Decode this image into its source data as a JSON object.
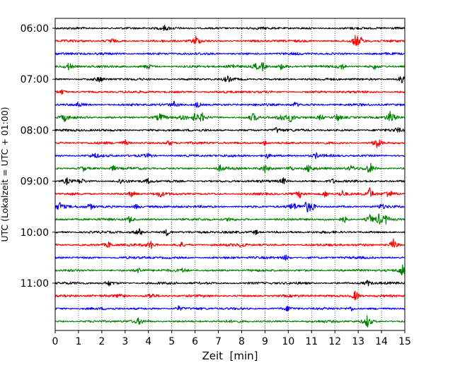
{
  "chart_data": {
    "type": "line",
    "title": "",
    "xlabel": "Zeit  [min]",
    "ylabel": "UTC (Lokalzeit = UTC + 01:00)",
    "xlim": [
      0,
      15
    ],
    "x_ticks": [
      "0",
      "1",
      "2",
      "3",
      "4",
      "5",
      "6",
      "7",
      "8",
      "9",
      "10",
      "11",
      "12",
      "13",
      "14",
      "15"
    ],
    "y_ticks": [
      "06:00",
      "07:00",
      "08:00",
      "09:00",
      "10:00",
      "11:00"
    ],
    "grid": "vertical dotted lines at each minute",
    "trace_colors": [
      "#000000",
      "#ff0000",
      "#0000ff",
      "#008000"
    ],
    "traces": [
      {
        "start": "06:00",
        "events": [
          [
            4.7,
            0.25
          ]
        ]
      },
      {
        "start": "06:15",
        "events": [
          [
            2.4,
            0.3
          ],
          [
            6.05,
            0.6
          ],
          [
            12.9,
            0.75
          ],
          [
            13.1,
            0.35
          ]
        ]
      },
      {
        "start": "06:30",
        "events": []
      },
      {
        "start": "06:45",
        "events": [
          [
            0.6,
            0.5
          ],
          [
            4.0,
            0.3
          ],
          [
            7.6,
            0.3
          ],
          [
            8.6,
            0.4
          ],
          [
            8.9,
            0.5
          ],
          [
            9.7,
            0.3
          ],
          [
            12.3,
            0.4
          ],
          [
            13.7,
            0.3
          ]
        ]
      },
      {
        "start": "07:00",
        "events": [
          [
            1.9,
            0.3
          ],
          [
            7.4,
            0.3
          ],
          [
            14.9,
            0.8
          ]
        ]
      },
      {
        "start": "07:15",
        "events": [
          [
            0.3,
            0.3
          ]
        ]
      },
      {
        "start": "07:30",
        "events": [
          [
            1.0,
            0.3
          ],
          [
            5.1,
            0.3
          ],
          [
            6.1,
            0.4
          ],
          [
            10.3,
            0.3
          ]
        ]
      },
      {
        "start": "07:45",
        "events": [
          [
            0.4,
            0.4
          ],
          [
            4.5,
            0.5
          ],
          [
            5.5,
            0.4
          ],
          [
            6.0,
            0.5
          ],
          [
            6.3,
            0.5
          ],
          [
            8.5,
            0.5
          ],
          [
            9.7,
            0.5
          ],
          [
            10.1,
            0.5
          ],
          [
            11.4,
            0.4
          ],
          [
            12.1,
            0.5
          ],
          [
            14.4,
            0.8
          ]
        ]
      },
      {
        "start": "08:00",
        "events": [
          [
            9.5,
            0.35
          ],
          [
            14.7,
            0.3
          ]
        ]
      },
      {
        "start": "08:15",
        "events": [
          [
            3.0,
            0.35
          ],
          [
            4.9,
            0.35
          ],
          [
            9.0,
            0.3
          ],
          [
            13.8,
            0.7
          ]
        ]
      },
      {
        "start": "08:30",
        "events": [
          [
            1.7,
            0.3
          ],
          [
            4.0,
            0.25
          ],
          [
            9.1,
            0.3
          ],
          [
            11.2,
            0.3
          ]
        ]
      },
      {
        "start": "08:45",
        "events": [
          [
            1.2,
            0.3
          ],
          [
            2.5,
            0.3
          ],
          [
            7.1,
            0.35
          ],
          [
            9.0,
            0.45
          ],
          [
            10.1,
            0.35
          ],
          [
            10.9,
            0.55
          ],
          [
            12.7,
            0.3
          ],
          [
            13.5,
            0.75
          ]
        ]
      },
      {
        "start": "09:00",
        "events": [
          [
            0.5,
            0.4
          ],
          [
            1.1,
            0.35
          ],
          [
            2.8,
            0.3
          ],
          [
            4.0,
            0.3
          ],
          [
            9.8,
            0.4
          ],
          [
            11.9,
            0.3
          ]
        ]
      },
      {
        "start": "09:15",
        "events": [
          [
            3.3,
            0.4
          ],
          [
            4.5,
            0.35
          ],
          [
            10.5,
            0.4
          ],
          [
            11.6,
            0.45
          ],
          [
            12.3,
            0.4
          ],
          [
            13.5,
            0.75
          ],
          [
            14.3,
            0.5
          ]
        ]
      },
      {
        "start": "09:30",
        "events": [
          [
            0.2,
            0.5
          ],
          [
            1.5,
            0.35
          ],
          [
            3.5,
            0.35
          ],
          [
            10.2,
            0.5
          ],
          [
            10.8,
            0.6
          ],
          [
            11.0,
            0.5
          ],
          [
            14.0,
            0.3
          ]
        ]
      },
      {
        "start": "09:45",
        "events": [
          [
            3.2,
            0.45
          ],
          [
            7.5,
            0.3
          ],
          [
            12.4,
            0.4
          ],
          [
            13.5,
            0.55
          ],
          [
            13.9,
            0.6
          ],
          [
            14.2,
            0.5
          ]
        ]
      },
      {
        "start": "10:00",
        "events": [
          [
            3.6,
            0.4
          ],
          [
            4.8,
            0.45
          ],
          [
            8.6,
            0.3
          ]
        ]
      },
      {
        "start": "10:15",
        "events": [
          [
            2.3,
            0.35
          ],
          [
            4.1,
            0.5
          ],
          [
            5.4,
            0.3
          ],
          [
            8.0,
            0.3
          ],
          [
            14.5,
            0.75
          ]
        ]
      },
      {
        "start": "10:30",
        "events": [
          [
            9.9,
            0.35
          ]
        ]
      },
      {
        "start": "10:45",
        "events": [
          [
            3.6,
            0.35
          ],
          [
            5.5,
            0.3
          ],
          [
            14.9,
            0.8
          ]
        ]
      },
      {
        "start": "11:00",
        "events": [
          [
            2.3,
            0.3
          ],
          [
            13.4,
            0.35
          ]
        ]
      },
      {
        "start": "11:15",
        "events": [
          [
            2.8,
            0.35
          ],
          [
            4.1,
            0.4
          ],
          [
            12.9,
            0.75
          ]
        ]
      },
      {
        "start": "11:30",
        "events": [
          [
            5.3,
            0.3
          ],
          [
            10.0,
            0.3
          ],
          [
            12.7,
            0.3
          ]
        ]
      },
      {
        "start": "11:45",
        "events": [
          [
            3.6,
            0.35
          ],
          [
            13.4,
            0.75
          ]
        ]
      }
    ]
  }
}
